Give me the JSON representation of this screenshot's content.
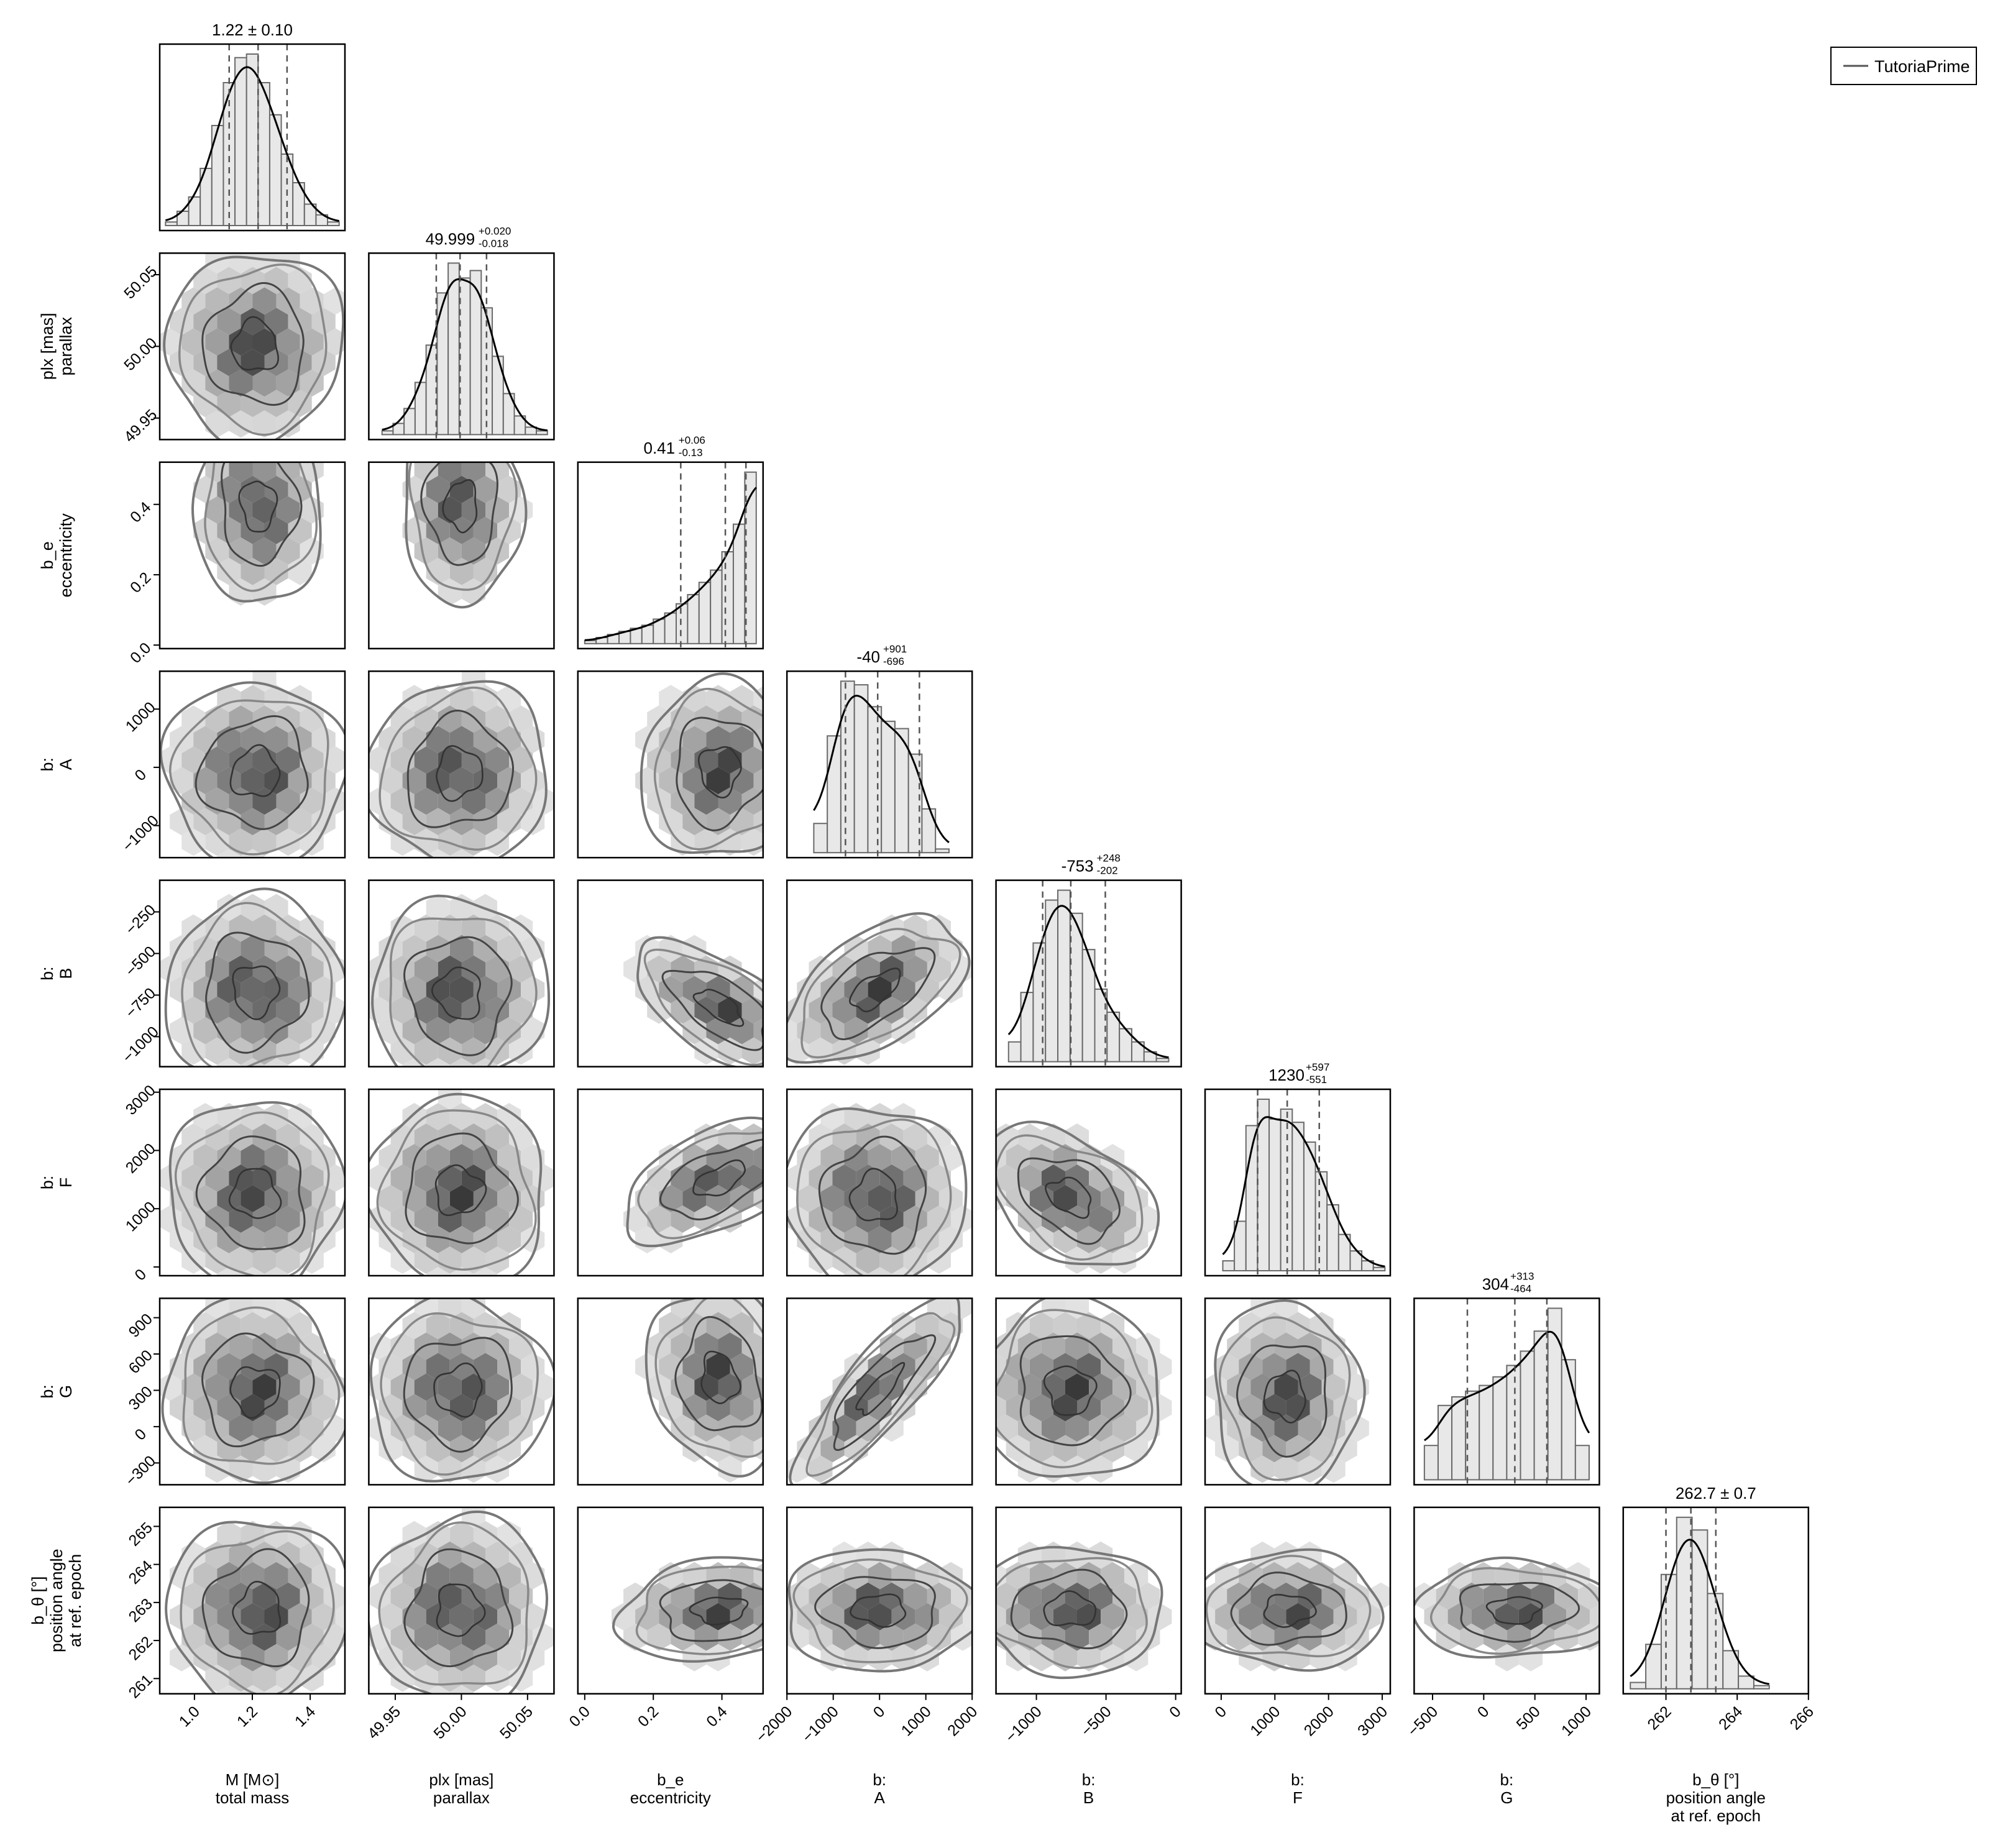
{
  "legend": {
    "label": "TutoriaPrime",
    "placement": "top-right"
  },
  "chart_data": {
    "type": "corner",
    "parameters": [
      {
        "key": "M",
        "label_lines": [
          "M [M⊙]",
          "total mass"
        ],
        "ylabel_lines": [],
        "ticks": [
          1.0,
          1.2,
          1.4
        ],
        "tick_labels": [
          "1.0",
          "1.2",
          "1.4"
        ],
        "range": [
          0.88,
          1.52
        ],
        "summary": {
          "median": "1.22",
          "plus": "",
          "minus": "",
          "symmetric": "0.10",
          "text": "1.22 ± 0.10"
        },
        "quantiles": [
          1.12,
          1.22,
          1.32
        ],
        "hist": [
          1,
          4,
          8,
          16,
          28,
          40,
          47,
          48,
          40,
          31,
          20,
          12,
          6,
          3,
          1
        ],
        "mode": 1.21
      },
      {
        "key": "plx",
        "label_lines": [
          "plx [mas]",
          "parallax"
        ],
        "ylabel_lines": [
          "plx [mas]",
          "parallax"
        ],
        "ticks": [
          49.95,
          50.0,
          50.05
        ],
        "tick_labels": [
          "49.95",
          "50.00",
          "50.05"
        ],
        "range": [
          49.93,
          50.07
        ],
        "summary": {
          "median": "49.999",
          "plus": "+0.020",
          "minus": "-0.018",
          "symmetric": "",
          "text": "49.999 +0.020 -0.018"
        },
        "quantiles": [
          49.981,
          49.999,
          50.019
        ],
        "hist": [
          1,
          3,
          7,
          14,
          24,
          38,
          46,
          42,
          44,
          34,
          21,
          11,
          5,
          2,
          1
        ],
        "mode": 49.997
      },
      {
        "key": "e",
        "label_lines": [
          "b_e",
          "eccentricity"
        ],
        "ylabel_lines": [
          "b_e",
          "eccentricity"
        ],
        "ticks": [
          0.0,
          0.2,
          0.4
        ],
        "tick_labels": [
          "0.0",
          "0.2",
          "0.4"
        ],
        "range": [
          -0.02,
          0.52
        ],
        "summary": {
          "median": "0.41",
          "plus": "+0.06",
          "minus": "-0.13",
          "symmetric": "",
          "text": "0.41 +0.06 -0.13"
        },
        "quantiles": [
          0.28,
          0.41,
          0.47
        ],
        "hist": [
          1,
          2,
          3,
          4,
          5,
          6,
          8,
          10,
          13,
          16,
          20,
          24,
          30,
          39,
          56
        ],
        "mode": 0.47
      },
      {
        "key": "A",
        "label_lines": [
          "b:",
          "A"
        ],
        "ylabel_lines": [
          "b:",
          "A"
        ],
        "ticks": [
          -2000,
          -1000,
          0,
          1000,
          2000
        ],
        "tick_labels": [
          "−2000",
          "−1000",
          "0",
          "1000",
          "2000"
        ],
        "range": [
          -2000,
          2000
        ],
        "summary": {
          "median": "-40",
          "plus": "+901",
          "minus": "-696",
          "symmetric": "",
          "text": "-40 +901 -696"
        },
        "quantiles": [
          -736,
          -40,
          861
        ],
        "hist": [
          8,
          32,
          47,
          46,
          40,
          36,
          34,
          27,
          12,
          1
        ],
        "mode": -450
      },
      {
        "key": "B",
        "label_lines": [
          "b:",
          "B"
        ],
        "ylabel_lines": [
          "b:",
          "B"
        ],
        "ticks": [
          -1000,
          -500,
          0
        ],
        "tick_labels": [
          "−1000",
          "−500",
          "0"
        ],
        "range": [
          -1290,
          40
        ],
        "summary": {
          "median": "-753",
          "plus": "+248",
          "minus": "-202",
          "symmetric": "",
          "text": "-753 +248 -202"
        },
        "quantiles": [
          -955,
          -753,
          -505
        ],
        "hist": [
          6,
          21,
          36,
          49,
          52,
          45,
          34,
          22,
          15,
          10,
          6,
          3,
          1
        ],
        "mode": -760
      },
      {
        "key": "F",
        "label_lines": [
          "b:",
          "F"
        ],
        "ylabel_lines": [
          "b:",
          "F"
        ],
        "ticks": [
          0,
          1000,
          2000,
          3000
        ],
        "tick_labels": [
          "0",
          "1000",
          "2000",
          "3000"
        ],
        "range": [
          -300,
          3150
        ],
        "summary": {
          "median": "1230",
          "plus": "+597",
          "minus": "-551",
          "symmetric": "",
          "text": "1230 +597 -551"
        },
        "quantiles": [
          679,
          1230,
          1827
        ],
        "hist": [
          3,
          15,
          44,
          52,
          46,
          49,
          45,
          39,
          30,
          20,
          11,
          6,
          3,
          1
        ],
        "mode": 1000
      },
      {
        "key": "G",
        "label_lines": [
          "b:",
          "G"
        ],
        "ylabel_lines": [
          "b:",
          "G"
        ],
        "ticks": [
          -500,
          0,
          500,
          1000
        ],
        "tick_labels": [
          "−500",
          "0",
          "500",
          "1000"
        ],
        "range": [
          -680,
          1130
        ],
        "summary": {
          "median": "304",
          "plus": "+313",
          "minus": "-464",
          "symmetric": "",
          "text": "304 +313 -464"
        },
        "quantiles": [
          -160,
          304,
          617
        ],
        "hist": [
          12,
          26,
          29,
          31,
          33,
          36,
          40,
          45,
          52,
          60,
          42,
          12
        ],
        "mode": 530
      },
      {
        "key": "theta",
        "label_lines": [
          "b_θ [°]",
          "position angle",
          "at ref. epoch"
        ],
        "ylabel_lines": [
          "b_θ [°]",
          "position angle",
          "at ref. epoch"
        ],
        "ticks": [
          262,
          264,
          266
        ],
        "tick_labels": [
          "262",
          "264",
          "266"
        ],
        "range": [
          260.8,
          266.0
        ],
        "summary": {
          "median": "262.7",
          "plus": "",
          "minus": "",
          "symmetric": "0.7",
          "text": "262.7 ± 0.7"
        },
        "quantiles": [
          262.0,
          262.7,
          263.4
        ],
        "hist": [
          2,
          14,
          36,
          54,
          50,
          30,
          12,
          4,
          1
        ],
        "mode": 262.7
      }
    ],
    "yticks": {
      "plx": {
        "ticks": [
          49.95,
          50.0,
          50.05
        ],
        "labels": [
          "49.95",
          "50.00",
          "50.05"
        ]
      },
      "e": {
        "ticks": [
          0.0,
          0.2,
          0.4
        ],
        "labels": [
          "0.0",
          "0.2",
          "0.4"
        ]
      },
      "A": {
        "ticks": [
          -1000,
          0,
          1000
        ],
        "labels": [
          "−1000",
          "0",
          "1000"
        ]
      },
      "B": {
        "ticks": [
          -1000,
          -750,
          -500,
          -250
        ],
        "labels": [
          "−1000",
          "−750",
          "−500",
          "−250"
        ]
      },
      "F": {
        "ticks": [
          0,
          1000,
          2000,
          3000
        ],
        "labels": [
          "0",
          "1000",
          "2000",
          "3000"
        ]
      },
      "G": {
        "ticks": [
          -300,
          0,
          300,
          600,
          900
        ],
        "labels": [
          "−300",
          "0",
          "300",
          "600",
          "900"
        ]
      },
      "theta": {
        "ticks": [
          261,
          262,
          263,
          264,
          265
        ],
        "labels": [
          "261",
          "262",
          "263",
          "264",
          "265"
        ]
      }
    },
    "yranges": {
      "plx": [
        49.935,
        50.065
      ],
      "e": [
        -0.01,
        0.52
      ],
      "A": [
        -1550,
        1650
      ],
      "B": [
        -1180,
        -60
      ],
      "F": [
        -150,
        3050
      ],
      "G": [
        -480,
        1060
      ],
      "theta": [
        260.6,
        265.5
      ]
    },
    "pair_centers": {
      "plx|M": [
        1.21,
        50.0
      ],
      "e|M": [
        1.22,
        0.44
      ],
      "e|plx": [
        50.0,
        0.45
      ],
      "A|M": [
        1.21,
        -100
      ],
      "A|plx": [
        49.998,
        -100
      ],
      "A|e": [
        0.43,
        -50
      ],
      "B|M": [
        1.21,
        -720
      ],
      "B|plx": [
        49.998,
        -740
      ],
      "B|e": [
        0.42,
        -820
      ],
      "B|A": [
        -100,
        -720
      ],
      "F|M": [
        1.21,
        1250
      ],
      "F|plx": [
        49.998,
        1300
      ],
      "F|e": [
        0.42,
        1500
      ],
      "F|A": [
        -100,
        1200
      ],
      "F|B": [
        -760,
        1200
      ],
      "G|M": [
        1.21,
        300
      ],
      "G|plx": [
        49.998,
        300
      ],
      "G|e": [
        0.43,
        400
      ],
      "G|A": [
        0,
        300
      ],
      "G|B": [
        -760,
        300
      ],
      "G|F": [
        1200,
        250
      ],
      "theta|M": [
        1.22,
        262.8
      ],
      "theta|plx": [
        49.998,
        262.8
      ],
      "theta|e": [
        0.42,
        262.8
      ],
      "theta|A": [
        0,
        262.8
      ],
      "theta|B": [
        -760,
        262.8
      ],
      "theta|F": [
        1250,
        262.8
      ],
      "theta|G": [
        300,
        262.8
      ]
    },
    "grid": false
  }
}
